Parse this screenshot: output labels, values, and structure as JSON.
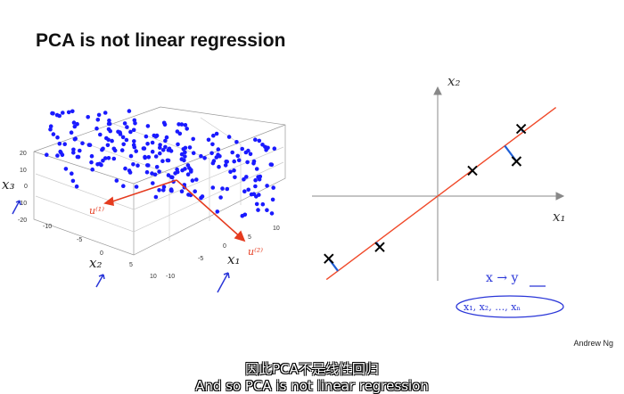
{
  "slide": {
    "title": "PCA is not linear regression",
    "author": "Andrew Ng"
  },
  "left_plot": {
    "labels": {
      "x1": "x₁",
      "x2": "x₂",
      "x3": "x₃",
      "u1": "u⁽¹⁾",
      "u2": "u⁽²⁾"
    },
    "ticks": {
      "z": [
        "20",
        "10",
        "0",
        "-10",
        "-20"
      ],
      "y": [
        "-10",
        "-5",
        "0",
        "5",
        "10"
      ],
      "x": [
        "-10",
        "-5",
        "0",
        "5",
        "10"
      ]
    },
    "colors": {
      "points": "#1a1aff",
      "vectors": "#e53b1f"
    }
  },
  "right_plot": {
    "labels": {
      "x1": "x₁",
      "x2": "x₂"
    },
    "annotation_arrow": "x → y",
    "annotation_vars": "x₁, x₂, …, xₙ",
    "colors": {
      "line": "#f04a2a",
      "residual": "#1f5fd6",
      "marker": "#000000",
      "ink": "#2a36d8"
    },
    "points": [
      {
        "x": -4.7,
        "y": -2.7
      },
      {
        "x": -2.5,
        "y": -2.2
      },
      {
        "x": 1.5,
        "y": 1.1
      },
      {
        "x": 3.4,
        "y": 1.5
      },
      {
        "x": 3.6,
        "y": 2.9
      }
    ],
    "fit_line": {
      "slope": 0.75,
      "intercept": 0
    }
  },
  "subtitles": {
    "line1": "因此PCA不是线性回归",
    "line2": "And so PCA is not linear regression"
  }
}
